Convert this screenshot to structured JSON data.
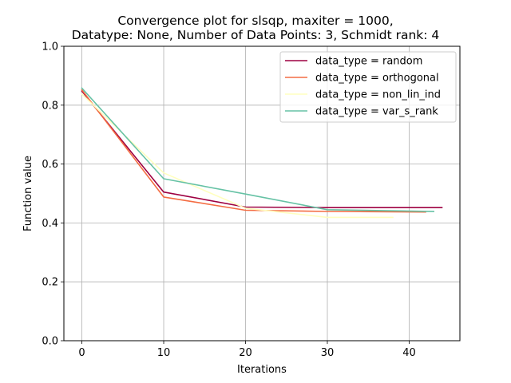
{
  "chart_data": {
    "type": "line",
    "title_line1": "Convergence plot for slsqp, maxiter = 1000,",
    "title_line2": "Datatype: None, Number of Data Points: 3, Schmidt rank: 4",
    "xlabel": "Iterations",
    "ylabel": "Function value",
    "xlim": [
      -2.2,
      46.2
    ],
    "ylim": [
      0.0,
      1.0
    ],
    "xticks": [
      0,
      10,
      20,
      30,
      40
    ],
    "xtick_labels": [
      "0",
      "10",
      "20",
      "30",
      "40"
    ],
    "yticks": [
      0.0,
      0.2,
      0.4,
      0.6,
      0.8,
      1.0
    ],
    "ytick_labels": [
      "0.0",
      "0.2",
      "0.4",
      "0.6",
      "0.8",
      "1.0"
    ],
    "grid": true,
    "legend_position": "top-right",
    "series": [
      {
        "name": "data_type = random",
        "color": "#9e0142",
        "x": [
          0,
          10,
          20,
          30,
          44
        ],
        "y": [
          0.848,
          0.505,
          0.454,
          0.452,
          0.452
        ]
      },
      {
        "name": "data_type = orthogonal",
        "color": "#f46d43",
        "x": [
          0,
          10,
          20,
          30,
          42
        ],
        "y": [
          0.852,
          0.488,
          0.443,
          0.439,
          0.437
        ]
      },
      {
        "name": "data_type = non_lin_ind",
        "color": "#ffffbf",
        "x": [
          0,
          10,
          20,
          30,
          38
        ],
        "y": [
          0.838,
          0.57,
          0.45,
          0.419,
          0.419
        ]
      },
      {
        "name": "data_type = var_s_rank",
        "color": "#66c2a5",
        "x": [
          0,
          10,
          20,
          30,
          43
        ],
        "y": [
          0.858,
          0.55,
          0.498,
          0.445,
          0.439
        ]
      }
    ]
  }
}
